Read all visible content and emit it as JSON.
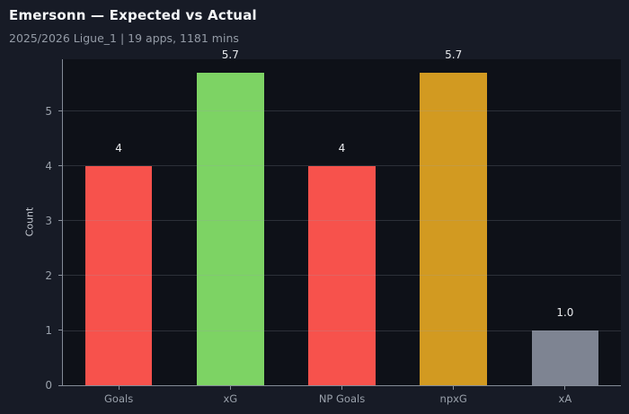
{
  "header": {
    "title": "Emersonn — Expected vs Actual",
    "subtitle": "2025/2026 Ligue_1 | 19 apps, 1181 mins"
  },
  "chart_data": {
    "type": "bar",
    "title": "Emersonn — Expected vs Actual",
    "subtitle": "2025/2026 Ligue_1 | 19 apps, 1181 mins",
    "categories": [
      "Goals",
      "xG",
      "NP Goals",
      "npxG",
      "xA"
    ],
    "values": [
      4,
      5.7,
      4,
      5.7,
      1.0
    ],
    "value_labels": [
      "4",
      "5.7",
      "4",
      "5.7",
      "1.0"
    ],
    "bar_colors": [
      "#f7524c",
      "#7dd364",
      "#f7524c",
      "#d29a21",
      "#7e8492"
    ],
    "xlabel": "",
    "ylabel": "Count",
    "ylim": [
      0,
      5.95
    ],
    "yticks": [
      0,
      1,
      2,
      3,
      4,
      5
    ],
    "grid": true,
    "legend": false
  },
  "colors": {
    "page_background": "#171b26",
    "plot_background": "#0e1118",
    "title_text": "#f4f6f8",
    "subtitle_text": "#949ba6",
    "tick_text": "#9aa1ab",
    "axis_label_text": "#c4c9d1",
    "value_label_text": "#e9ebee",
    "spine": "#848b97",
    "tick_mark": "#8a919c",
    "gridline": "rgba(155,161,172,0.22)"
  }
}
